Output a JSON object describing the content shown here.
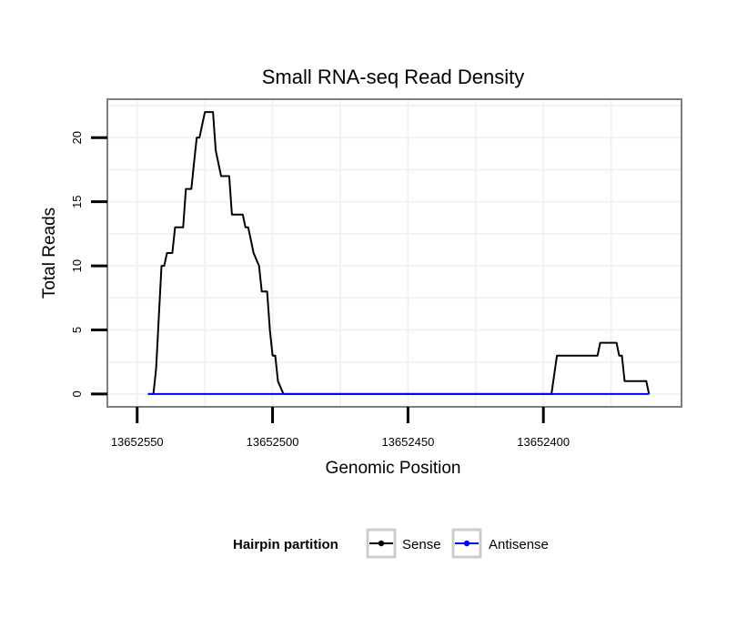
{
  "chart_data": {
    "type": "line",
    "title": "Small RNA-seq Read Density",
    "xlabel": "Genomic Position",
    "ylabel": "Total Reads",
    "x_reversed": true,
    "xlim": [
      13652561,
      13652349
    ],
    "ylim": [
      -1,
      23
    ],
    "x_ticks": [
      13652550,
      13652500,
      13652450,
      13652400
    ],
    "x_tick_labels": [
      "13652550",
      "13652500",
      "13652450",
      "13652400"
    ],
    "y_ticks": [
      0,
      5,
      10,
      15,
      20
    ],
    "y_tick_labels": [
      "0",
      "5",
      "10",
      "15",
      "20"
    ],
    "grid": true,
    "legend": {
      "title": "Hairpin partition",
      "position": "bottom",
      "entries": [
        {
          "label": "Sense",
          "color": "#000000"
        },
        {
          "label": "Antisense",
          "color": "#0000ff"
        }
      ]
    },
    "series": [
      {
        "name": "Sense",
        "color": "#000000",
        "points": [
          [
            13652546,
            0
          ],
          [
            13652544,
            0
          ],
          [
            13652543,
            2
          ],
          [
            13652541,
            10
          ],
          [
            13652540,
            10
          ],
          [
            13652539,
            11
          ],
          [
            13652537,
            11
          ],
          [
            13652536,
            13
          ],
          [
            13652533,
            13
          ],
          [
            13652532,
            16
          ],
          [
            13652530,
            16
          ],
          [
            13652529,
            18
          ],
          [
            13652528,
            20
          ],
          [
            13652527,
            20
          ],
          [
            13652525,
            22
          ],
          [
            13652522,
            22
          ],
          [
            13652521,
            19
          ],
          [
            13652519,
            17
          ],
          [
            13652516,
            17
          ],
          [
            13652515,
            14
          ],
          [
            13652511,
            14
          ],
          [
            13652510,
            13
          ],
          [
            13652509,
            13
          ],
          [
            13652507,
            11
          ],
          [
            13652505,
            10
          ],
          [
            13652504,
            8
          ],
          [
            13652502,
            8
          ],
          [
            13652501,
            5
          ],
          [
            13652500,
            3
          ],
          [
            13652499,
            3
          ],
          [
            13652498,
            1
          ],
          [
            13652496,
            0
          ],
          [
            13652397,
            0
          ],
          [
            13652395,
            3
          ],
          [
            13652380,
            3
          ],
          [
            13652379,
            4
          ],
          [
            13652373,
            4
          ],
          [
            13652372,
            3
          ],
          [
            13652371,
            3
          ],
          [
            13652370,
            1
          ],
          [
            13652362,
            1
          ],
          [
            13652361,
            0
          ]
        ]
      },
      {
        "name": "Antisense",
        "color": "#0000ff",
        "points": [
          [
            13652546,
            0
          ],
          [
            13652496,
            0
          ],
          [
            13652397,
            0
          ],
          [
            13652361,
            0
          ]
        ]
      }
    ]
  }
}
